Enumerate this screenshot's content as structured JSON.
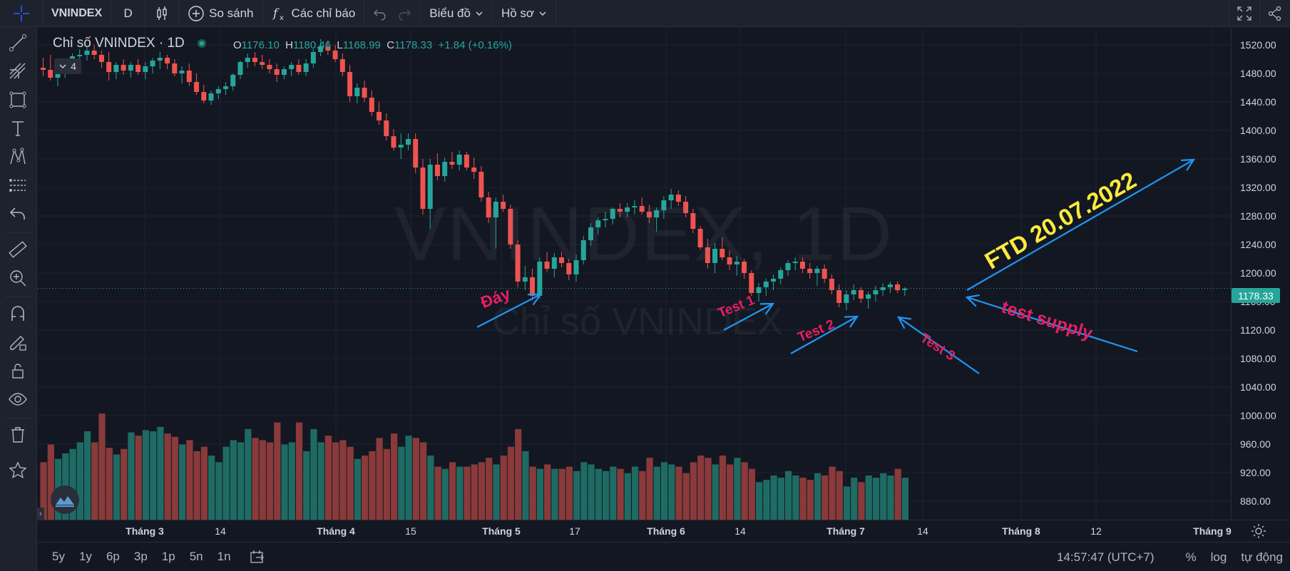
{
  "toolbar": {
    "symbol": "VNINDEX",
    "interval": "D",
    "compare": "So sánh",
    "indicators": "Các chỉ báo",
    "chart_menu": "Biểu đồ",
    "profile": "Hồ sơ"
  },
  "legend": {
    "title": "Chỉ số VNINDEX · 1D",
    "o_label": "O",
    "o": "1176.10",
    "h_label": "H",
    "h": "1180.46",
    "l_label": "L",
    "l": "1168.99",
    "c_label": "C",
    "c": "1178.33",
    "change": "+1.84 (+0.16%)",
    "collapsed_count": "4"
  },
  "watermark": {
    "main": "VNINDEX, 1D",
    "sub": "Chỉ số VNINDEX"
  },
  "last_price": "1178.33",
  "price_ticks": [
    "1520.00",
    "1480.00",
    "1440.00",
    "1400.00",
    "1360.00",
    "1320.00",
    "1280.00",
    "1240.00",
    "1200.00",
    "1160.00",
    "1120.00",
    "1080.00",
    "1040.00",
    "1000.00",
    "960.00",
    "920.00",
    "880.00"
  ],
  "time_ticks": [
    {
      "label": "Tháng 3",
      "bold": true
    },
    {
      "label": "14",
      "bold": false
    },
    {
      "label": "Tháng 4",
      "bold": true
    },
    {
      "label": "15",
      "bold": false
    },
    {
      "label": "Tháng 5",
      "bold": true
    },
    {
      "label": "17",
      "bold": false
    },
    {
      "label": "Tháng 6",
      "bold": true
    },
    {
      "label": "14",
      "bold": false
    },
    {
      "label": "Tháng 7",
      "bold": true
    },
    {
      "label": "14",
      "bold": false
    },
    {
      "label": "Tháng 8",
      "bold": true
    },
    {
      "label": "12",
      "bold": false
    },
    {
      "label": "Tháng 9",
      "bold": true
    }
  ],
  "bottom": {
    "ranges": [
      "5y",
      "1y",
      "6p",
      "3p",
      "1p",
      "5n",
      "1n"
    ],
    "clock": "14:57:47 (UTC+7)",
    "percent": "%",
    "log": "log",
    "auto": "tự động"
  },
  "annotations": {
    "bottom": "Đáy",
    "test1": "Test 1",
    "test2": "Test 2",
    "test3": "Test 3",
    "supply": "test supply",
    "ftd": "FTD 20.07.2022"
  },
  "colors": {
    "up": "#26a69a",
    "down": "#ef5350",
    "vol_up": "#1e6b64",
    "vol_down": "#8a3a3a",
    "arrow": "#2196f3",
    "pink": "#e91e63",
    "yellow": "#ffeb3b"
  },
  "chart_data": {
    "type": "candlestick",
    "series_columns": [
      "open",
      "high",
      "low",
      "close",
      "volume"
    ],
    "ylim": [
      860,
      1540
    ],
    "volume_range": [
      0,
      1
    ],
    "candles": [
      [
        1488,
        1502,
        1476,
        1485,
        0.52
      ],
      [
        1485,
        1506,
        1470,
        1474,
        0.68
      ],
      [
        1474,
        1490,
        1462,
        1482,
        0.55
      ],
      [
        1482,
        1498,
        1474,
        1494,
        0.6
      ],
      [
        1494,
        1508,
        1486,
        1504,
        0.64
      ],
      [
        1504,
        1514,
        1494,
        1506,
        0.7
      ],
      [
        1506,
        1518,
        1498,
        1512,
        0.8
      ],
      [
        1512,
        1520,
        1500,
        1506,
        0.7
      ],
      [
        1506,
        1512,
        1488,
        1496,
        0.96
      ],
      [
        1496,
        1510,
        1470,
        1482,
        0.65
      ],
      [
        1482,
        1496,
        1472,
        1492,
        0.59
      ],
      [
        1492,
        1500,
        1478,
        1484,
        0.64
      ],
      [
        1484,
        1496,
        1474,
        1492,
        0.79
      ],
      [
        1492,
        1500,
        1478,
        1482,
        0.76
      ],
      [
        1482,
        1496,
        1472,
        1490,
        0.81
      ],
      [
        1490,
        1502,
        1480,
        1498,
        0.8
      ],
      [
        1498,
        1510,
        1486,
        1502,
        0.84
      ],
      [
        1502,
        1506,
        1486,
        1494,
        0.78
      ],
      [
        1494,
        1500,
        1476,
        1480,
        0.75
      ],
      [
        1480,
        1490,
        1466,
        1484,
        0.68
      ],
      [
        1484,
        1494,
        1462,
        1468,
        0.72
      ],
      [
        1468,
        1480,
        1450,
        1454,
        0.62
      ],
      [
        1454,
        1464,
        1438,
        1442,
        0.66
      ],
      [
        1442,
        1456,
        1436,
        1452,
        0.58
      ],
      [
        1452,
        1462,
        1444,
        1458,
        0.52
      ],
      [
        1458,
        1468,
        1450,
        1462,
        0.66
      ],
      [
        1462,
        1480,
        1456,
        1478,
        0.72
      ],
      [
        1478,
        1498,
        1472,
        1496,
        0.7
      ],
      [
        1496,
        1508,
        1488,
        1502,
        0.82
      ],
      [
        1502,
        1510,
        1490,
        1496,
        0.74
      ],
      [
        1496,
        1506,
        1486,
        1492,
        0.72
      ],
      [
        1492,
        1500,
        1480,
        1486,
        0.7
      ],
      [
        1486,
        1494,
        1468,
        1478,
        0.88
      ],
      [
        1478,
        1490,
        1472,
        1486,
        0.68
      ],
      [
        1486,
        1496,
        1476,
        1492,
        0.7
      ],
      [
        1492,
        1500,
        1478,
        1482,
        0.88
      ],
      [
        1482,
        1500,
        1476,
        1494,
        0.62
      ],
      [
        1494,
        1514,
        1488,
        1510,
        0.82
      ],
      [
        1510,
        1528,
        1504,
        1518,
        0.7
      ],
      [
        1518,
        1526,
        1506,
        1512,
        0.76
      ],
      [
        1512,
        1520,
        1496,
        1500,
        0.7
      ],
      [
        1500,
        1508,
        1476,
        1482,
        0.72
      ],
      [
        1482,
        1492,
        1440,
        1448,
        0.66
      ],
      [
        1448,
        1466,
        1438,
        1460,
        0.55
      ],
      [
        1460,
        1470,
        1440,
        1446,
        0.58
      ],
      [
        1446,
        1456,
        1420,
        1426,
        0.62
      ],
      [
        1426,
        1440,
        1408,
        1414,
        0.74
      ],
      [
        1414,
        1424,
        1386,
        1392,
        0.64
      ],
      [
        1392,
        1402,
        1372,
        1376,
        0.78
      ],
      [
        1376,
        1396,
        1360,
        1380,
        0.66
      ],
      [
        1380,
        1396,
        1372,
        1388,
        0.76
      ],
      [
        1388,
        1396,
        1340,
        1348,
        0.74
      ],
      [
        1348,
        1360,
        1282,
        1290,
        0.7
      ],
      [
        1290,
        1360,
        1262,
        1352,
        0.58
      ],
      [
        1352,
        1368,
        1330,
        1336,
        0.48
      ],
      [
        1336,
        1362,
        1328,
        1356,
        0.46
      ],
      [
        1356,
        1370,
        1346,
        1352,
        0.52
      ],
      [
        1352,
        1372,
        1344,
        1366,
        0.48
      ],
      [
        1366,
        1370,
        1344,
        1348,
        0.48
      ],
      [
        1348,
        1362,
        1332,
        1342,
        0.5
      ],
      [
        1342,
        1350,
        1300,
        1306,
        0.52
      ],
      [
        1306,
        1314,
        1270,
        1278,
        0.56
      ],
      [
        1278,
        1306,
        1234,
        1300,
        0.5
      ],
      [
        1300,
        1310,
        1286,
        1290,
        0.58
      ],
      [
        1290,
        1296,
        1234,
        1240,
        0.66
      ],
      [
        1240,
        1246,
        1180,
        1188,
        0.82
      ],
      [
        1188,
        1210,
        1176,
        1194,
        0.62
      ],
      [
        1194,
        1206,
        1162,
        1168,
        0.48
      ],
      [
        1168,
        1222,
        1164,
        1216,
        0.46
      ],
      [
        1216,
        1230,
        1202,
        1206,
        0.5
      ],
      [
        1206,
        1228,
        1194,
        1222,
        0.46
      ],
      [
        1222,
        1230,
        1208,
        1214,
        0.46
      ],
      [
        1214,
        1220,
        1190,
        1198,
        0.48
      ],
      [
        1198,
        1226,
        1188,
        1218,
        0.44
      ],
      [
        1218,
        1252,
        1212,
        1246,
        0.52
      ],
      [
        1246,
        1270,
        1238,
        1264,
        0.5
      ],
      [
        1264,
        1278,
        1254,
        1274,
        0.46
      ],
      [
        1274,
        1286,
        1264,
        1276,
        0.44
      ],
      [
        1276,
        1292,
        1268,
        1290,
        0.48
      ],
      [
        1290,
        1298,
        1278,
        1286,
        0.46
      ],
      [
        1286,
        1298,
        1278,
        1292,
        0.42
      ],
      [
        1292,
        1302,
        1282,
        1294,
        0.48
      ],
      [
        1294,
        1306,
        1282,
        1286,
        0.44
      ],
      [
        1286,
        1296,
        1270,
        1278,
        0.56
      ],
      [
        1278,
        1292,
        1258,
        1288,
        0.48
      ],
      [
        1288,
        1308,
        1276,
        1302,
        0.52
      ],
      [
        1302,
        1318,
        1290,
        1310,
        0.5
      ],
      [
        1310,
        1316,
        1294,
        1300,
        0.48
      ],
      [
        1300,
        1308,
        1278,
        1284,
        0.42
      ],
      [
        1284,
        1290,
        1256,
        1262,
        0.52
      ],
      [
        1262,
        1266,
        1232,
        1236,
        0.58
      ],
      [
        1236,
        1248,
        1206,
        1214,
        0.56
      ],
      [
        1214,
        1242,
        1200,
        1234,
        0.5
      ],
      [
        1234,
        1250,
        1218,
        1222,
        0.58
      ],
      [
        1222,
        1232,
        1204,
        1212,
        0.5
      ],
      [
        1212,
        1224,
        1196,
        1216,
        0.56
      ],
      [
        1216,
        1220,
        1192,
        1200,
        0.52
      ],
      [
        1200,
        1204,
        1168,
        1172,
        0.46
      ],
      [
        1172,
        1186,
        1160,
        1180,
        0.34
      ],
      [
        1180,
        1192,
        1168,
        1188,
        0.36
      ],
      [
        1188,
        1198,
        1176,
        1192,
        0.4
      ],
      [
        1192,
        1208,
        1184,
        1204,
        0.38
      ],
      [
        1204,
        1218,
        1196,
        1214,
        0.44
      ],
      [
        1214,
        1222,
        1204,
        1216,
        0.4
      ],
      [
        1216,
        1222,
        1200,
        1206,
        0.38
      ],
      [
        1206,
        1214,
        1192,
        1200,
        0.36
      ],
      [
        1200,
        1210,
        1182,
        1206,
        0.42
      ],
      [
        1206,
        1212,
        1186,
        1192,
        0.4
      ],
      [
        1192,
        1198,
        1170,
        1176,
        0.48
      ],
      [
        1176,
        1184,
        1152,
        1158,
        0.44
      ],
      [
        1158,
        1176,
        1148,
        1170,
        0.3
      ],
      [
        1170,
        1184,
        1162,
        1176,
        0.38
      ],
      [
        1176,
        1180,
        1158,
        1164,
        0.34
      ],
      [
        1164,
        1174,
        1150,
        1170,
        0.4
      ],
      [
        1170,
        1182,
        1160,
        1176,
        0.38
      ],
      [
        1176,
        1186,
        1168,
        1180,
        0.42
      ],
      [
        1180,
        1188,
        1172,
        1184,
        0.4
      ],
      [
        1184,
        1188,
        1172,
        1176,
        0.46
      ],
      [
        1176,
        1180,
        1168,
        1178,
        0.38
      ]
    ],
    "annotations": [
      "Đáy",
      "Test 1",
      "Test 2",
      "Test 3",
      "test supply",
      "FTD 20.07.2022"
    ]
  }
}
